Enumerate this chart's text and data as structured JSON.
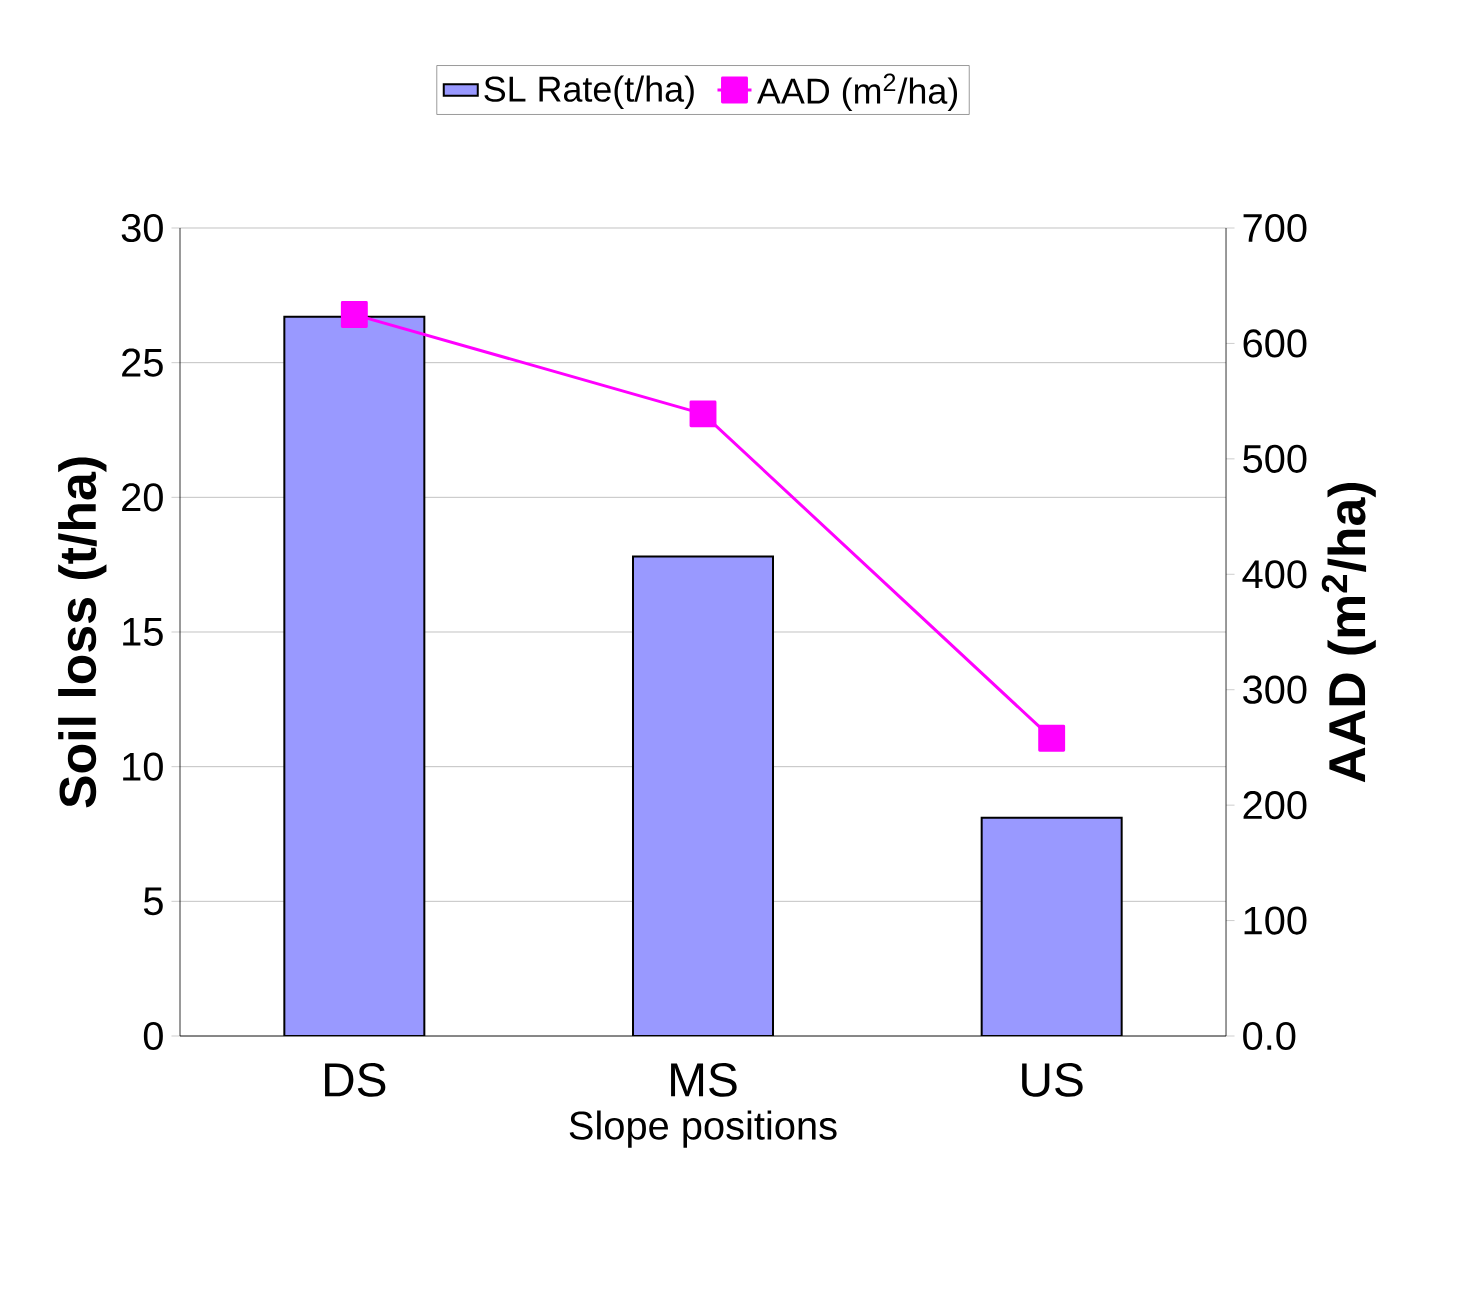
{
  "chart_data": {
    "type": "bar",
    "xlabel": "Slope positions",
    "ylabel": "Soil loss (t/ha)",
    "y2label": "AAD (m$^{2}$/ha)",
    "categories": [
      "DS",
      "MS",
      "US"
    ],
    "series": [
      {
        "name": "SL Rate(t/ha)",
        "color": "#9999ff",
        "values": [
          26.7,
          17.8,
          8.1
        ]
      },
      {
        "name": "AAD (m$^{2}$/ha)",
        "type": "line",
        "axis": "y2",
        "color": "#ff00ff",
        "marker": "square",
        "values": [
          625,
          539,
          258
        ]
      }
    ],
    "ylim": [
      0,
      30
    ],
    "yticks": [
      0,
      5,
      10,
      15,
      20,
      25,
      30
    ],
    "y2lim": [
      0,
      700
    ],
    "y2ticks": [
      {
        "value": 0,
        "label": "0.0"
      },
      100,
      200,
      300,
      400,
      500,
      600,
      700
    ],
    "grid": "y",
    "legend": "top"
  }
}
